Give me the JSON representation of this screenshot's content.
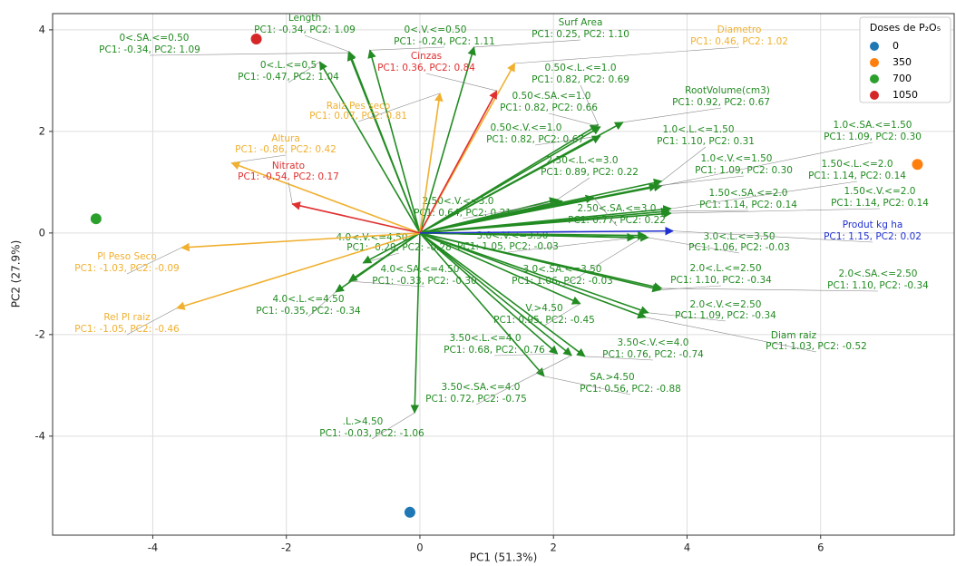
{
  "chart_data": {
    "type": "biplot",
    "xlabel": "PC1 (51.3%)",
    "ylabel": "PC2 (27.9%)",
    "xlim": [
      -5.5,
      8.0
    ],
    "ylim": [
      -5.95,
      4.32
    ],
    "xticks": [
      -4,
      -2,
      0,
      2,
      4,
      6
    ],
    "yticks": [
      -4,
      -2,
      0,
      2,
      4
    ],
    "grid": true,
    "legend_title": "Doses de P₂O₅",
    "legend_position": "upper right",
    "series": [
      {
        "name": "0",
        "color": "#1f77b4",
        "x": [
          -0.15
        ],
        "y": [
          -5.5
        ]
      },
      {
        "name": "350",
        "color": "#ff7f0e",
        "x": [
          7.45
        ],
        "y": [
          1.35
        ]
      },
      {
        "name": "700",
        "color": "#2ca02c",
        "x": [
          -4.85
        ],
        "y": [
          0.28
        ]
      },
      {
        "name": "1050",
        "color": "#d62728",
        "x": [
          -2.45
        ],
        "y": [
          3.82
        ]
      }
    ],
    "loadings": [
      {
        "name": "Length",
        "label": "PC1: -0.34, PC2: 1.09",
        "x": -1.06,
        "y": 3.57,
        "color": "#228b22"
      },
      {
        "name": "0<.SA.<=0.50",
        "label": "PC1: -0.34, PC2: 1.09",
        "x": -1.07,
        "y": 3.55,
        "color": "#228b22"
      },
      {
        "name": "0<.V.<=0.50",
        "label": "PC1: -0.24, PC2: 1.11",
        "x": -0.75,
        "y": 3.6,
        "color": "#228b22"
      },
      {
        "name": "0<.L.<=0.5",
        "label": "PC1: -0.47, PC2: 1.04",
        "x": -1.5,
        "y": 3.37,
        "color": "#228b22"
      },
      {
        "name": "Surf Area",
        "label": "PC1: 0.25, PC2: 1.10",
        "x": 0.81,
        "y": 3.66,
        "color": "#228b22"
      },
      {
        "name": "0.50<.L.<=1.0",
        "label": "PC1: 0.82, PC2: 0.69",
        "x": 2.67,
        "y": 2.13,
        "color": "#228b22"
      },
      {
        "name": "RootVolume(cm3)",
        "label": "PC1: 0.92, PC2: 0.67",
        "x": 3.04,
        "y": 2.18,
        "color": "#228b22"
      },
      {
        "name": "0.50<.SA.<=1.0",
        "label": "PC1: 0.82, PC2: 0.66",
        "x": 2.7,
        "y": 2.09,
        "color": "#228b22"
      },
      {
        "name": "0.50<.V.<=1.0",
        "label": "PC1: 0.82, PC2: 0.67",
        "x": 2.7,
        "y": 1.91,
        "color": "#228b22"
      },
      {
        "name": "1.0<.L.<=1.50",
        "label": "PC1: 1.10, PC2: 0.31",
        "x": 3.62,
        "y": 1.02,
        "color": "#228b22"
      },
      {
        "name": "1.0<.SA.<=1.50",
        "label": "PC1: 1.09, PC2: 0.30",
        "x": 3.62,
        "y": 0.93,
        "color": "#228b22"
      },
      {
        "name": "1.0<.V.<=1.50",
        "label": "PC1: 1.09, PC2: 0.30",
        "x": 3.55,
        "y": 0.93,
        "color": "#228b22"
      },
      {
        "name": "2.50<.L.<=3.0",
        "label": "PC1: 0.89, PC2: 0.22",
        "x": 2.06,
        "y": 0.66,
        "color": "#228b22"
      },
      {
        "name": "1.50<.L.<=2.0",
        "label": "PC1: 1.14, PC2: 0.14",
        "x": 3.76,
        "y": 0.48,
        "color": "#228b22"
      },
      {
        "name": "1.50<.SA.<=2.0",
        "label": "PC1: 1.14, PC2: 0.14",
        "x": 3.73,
        "y": 0.43,
        "color": "#228b22"
      },
      {
        "name": "1.50<.V.<=2.0",
        "label": "PC1: 1.14, PC2: 0.14",
        "x": 3.76,
        "y": 0.39,
        "color": "#228b22"
      },
      {
        "name": "2.50<.V.<=3.0",
        "label": "PC1: 0.64, PC2: 0.21",
        "x": 2.13,
        "y": 0.63,
        "color": "#228b22"
      },
      {
        "name": "2.50<.SA.<=3.0",
        "label": "PC1: 0.77, PC2: 0.22",
        "x": 2.6,
        "y": 0.7,
        "color": "#228b22"
      },
      {
        "name": "3.0<.V.<=3.50",
        "label": "PC1: 1.05, PC2: -0.03",
        "x": 3.22,
        "y": -0.09,
        "color": "#228b22"
      },
      {
        "name": "3.0<.L.<=3.50",
        "label": "PC1: 1.06, PC2: -0.03",
        "x": 3.42,
        "y": -0.09,
        "color": "#228b22"
      },
      {
        "name": "4.0<.V.<=4.50",
        "label": "PC1: -0.29, PC2: -0.28",
        "x": -0.85,
        "y": -0.59,
        "color": "#228b22"
      },
      {
        "name": "3.0<.SA.<=3.50",
        "label": "PC1: 1.06, PC2: -0.03",
        "x": 3.38,
        "y": -0.05,
        "color": "#228b22"
      },
      {
        "name": "4.0<.SA.<=4.50",
        "label": "PC1: -0.33, PC2: -0.30",
        "x": -1.06,
        "y": -0.95,
        "color": "#228b22"
      },
      {
        "name": "2.0<.L.<=2.50",
        "label": "PC1: 1.10, PC2: -0.34",
        "x": 3.6,
        "y": -1.12,
        "color": "#228b22"
      },
      {
        "name": "2.0<.SA.<=2.50",
        "label": "PC1: 1.10, PC2: -0.34",
        "x": 3.62,
        "y": -1.09,
        "color": "#228b22"
      },
      {
        "name": "4.0<.L.<=4.50",
        "label": "PC1: -0.35, PC2: -0.34",
        "x": -1.26,
        "y": -1.16,
        "color": "#228b22"
      },
      {
        "name": "2.0<.V.<=2.50",
        "label": "PC1: 1.09, PC2: -0.34",
        "x": 3.42,
        "y": -1.57,
        "color": "#228b22"
      },
      {
        "name": "V.>4.50",
        "label": "PC1: 0.95, PC2: -0.45",
        "x": 2.4,
        "y": -1.39,
        "color": "#228b22"
      },
      {
        "name": "Diam raiz",
        "label": "PC1: 1.03, PC2: -0.52",
        "x": 3.38,
        "y": -1.66,
        "color": "#228b22"
      },
      {
        "name": "3.50<.L.<=4.0",
        "label": "PC1: 0.68, PC2: -0.76",
        "x": 2.06,
        "y": -2.38,
        "color": "#228b22"
      },
      {
        "name": "3.50<.V.<=4.0",
        "label": "PC1: 0.76, PC2: -0.74",
        "x": 2.47,
        "y": -2.43,
        "color": "#228b22"
      },
      {
        "name": "SA.>4.50",
        "label": "PC1: 0.56, PC2: -0.88",
        "x": 1.86,
        "y": -2.82,
        "color": "#228b22"
      },
      {
        "name": "3.50<.SA.<=4.0",
        "label": "PC1: 0.72, PC2: -0.75",
        "x": 2.27,
        "y": -2.41,
        "color": "#228b22"
      },
      {
        "name": ".L.>4.50",
        "label": "PC1: -0.03, PC2: -1.06",
        "x": -0.08,
        "y": -3.54,
        "color": "#228b22"
      },
      {
        "name": "Diametro",
        "label": "PC1: 0.46, PC2: 1.02",
        "x": 1.42,
        "y": 3.34,
        "color": "#f0b030"
      },
      {
        "name": "Raiz Pes seco",
        "label": "PC1: 0.07, PC2: 0.81",
        "x": 0.3,
        "y": 2.75,
        "color": "#f0b030"
      },
      {
        "name": "Altura",
        "label": "PC1: -0.86, PC2: 0.42",
        "x": -2.82,
        "y": 1.38,
        "color": "#f0b030"
      },
      {
        "name": "Pl Peso Seco",
        "label": "PC1: -1.03, PC2: -0.09",
        "x": -3.57,
        "y": -0.29,
        "color": "#f0b030"
      },
      {
        "name": "Rel Pl raiz",
        "label": "PC1: -1.05, PC2: -0.46",
        "x": -3.64,
        "y": -1.48,
        "color": "#f0b030"
      },
      {
        "name": "Cinzas",
        "label": "PC1: 0.36, PC2: 0.84",
        "x": 1.15,
        "y": 2.8,
        "color": "#e03030"
      },
      {
        "name": "Nitrato",
        "label": "PC1: -0.54, PC2: 0.17",
        "x": -1.91,
        "y": 0.57,
        "color": "#e03030"
      },
      {
        "name": "Produt kg ha",
        "label": "PC1: 1.15, PC2: 0.02",
        "x": 3.79,
        "y": 0.04,
        "color": "#2030d0"
      }
    ]
  }
}
